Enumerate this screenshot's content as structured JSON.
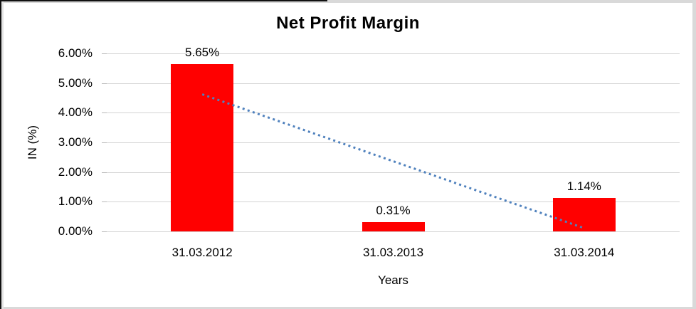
{
  "chart_data": {
    "type": "bar",
    "title": "Net Profit Margin",
    "xlabel": "Years",
    "ylabel": "IN (%)",
    "categories": [
      "31.03.2012",
      "31.03.2013",
      "31.03.2014"
    ],
    "series": [
      {
        "name": "Net Profit Margin",
        "values": [
          5.65,
          0.31,
          1.14
        ],
        "data_labels": [
          "5.65%",
          "0.31%",
          "1.14%"
        ],
        "color": "#ff0000"
      }
    ],
    "ylim": [
      0,
      6
    ],
    "ytick_step": 1,
    "ytick_labels": [
      "0.00%",
      "1.00%",
      "2.00%",
      "3.00%",
      "4.00%",
      "5.00%",
      "6.00%"
    ],
    "grid": true,
    "gridline_color": "#d4d4d4",
    "legend": "none",
    "trendline": {
      "type": "linear",
      "style": "dotted",
      "color": "#4f81bd",
      "start_value": 4.62,
      "end_value": 0.11
    }
  }
}
